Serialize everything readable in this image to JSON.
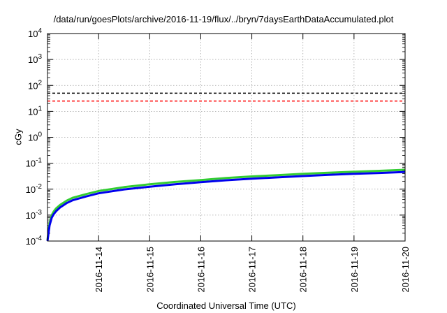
{
  "chart_data": {
    "type": "line",
    "title": "/data/run/goesPlots/archive/2016-11-19/flux/../bryn/7daysEarthDataAccumulated.plot",
    "xlabel": "Coordinated Universal Time (UTC)",
    "ylabel": "cGy",
    "y_scale": "log",
    "ylim": [
      0.0001,
      10000
    ],
    "xlim": [
      "2016-11-13T00:00",
      "2016-11-20T00:00"
    ],
    "grid": true,
    "legend": "none",
    "x_ticks": [
      "2016-11-14",
      "2016-11-15",
      "2016-11-16",
      "2016-11-17",
      "2016-11-18",
      "2016-11-19",
      "2016-11-20"
    ],
    "y_ticks": [
      {
        "value": 0.0001,
        "base": "10",
        "exp": "-4"
      },
      {
        "value": 0.001,
        "base": "10",
        "exp": "-3"
      },
      {
        "value": 0.01,
        "base": "10",
        "exp": "-2"
      },
      {
        "value": 0.1,
        "base": "10",
        "exp": "-1"
      },
      {
        "value": 1,
        "base": "10",
        "exp": "0"
      },
      {
        "value": 10,
        "base": "10",
        "exp": "1"
      },
      {
        "value": 100,
        "base": "10",
        "exp": "2"
      },
      {
        "value": 1000,
        "base": "10",
        "exp": "3"
      },
      {
        "value": 10000,
        "base": "10",
        "exp": "4"
      }
    ],
    "reference_lines": [
      {
        "y": 50,
        "color": "#000000",
        "style": "dashed"
      },
      {
        "y": 25,
        "color": "#ff0000",
        "style": "dashed"
      }
    ],
    "series": [
      {
        "color": "#33cc33",
        "x": [
          "2016-11-13T00:00",
          "2016-11-13T00:30",
          "2016-11-13T01:00",
          "2016-11-13T02:00",
          "2016-11-13T03:00",
          "2016-11-13T04:00",
          "2016-11-13T06:00",
          "2016-11-13T09:00",
          "2016-11-13T12:00",
          "2016-11-13T18:00",
          "2016-11-14T00:00",
          "2016-11-14T12:00",
          "2016-11-15T00:00",
          "2016-11-15T12:00",
          "2016-11-16T00:00",
          "2016-11-16T12:00",
          "2016-11-17T00:00",
          "2016-11-17T12:00",
          "2016-11-18T00:00",
          "2016-11-18T12:00",
          "2016-11-19T00:00",
          "2016-11-19T12:00",
          "2016-11-20T00:00"
        ],
        "y": [
          0.00011,
          0.00025,
          0.0005,
          0.001,
          0.0014,
          0.0018,
          0.0025,
          0.0036,
          0.0047,
          0.0064,
          0.0085,
          0.012,
          0.0155,
          0.019,
          0.0225,
          0.027,
          0.031,
          0.0345,
          0.039,
          0.043,
          0.047,
          0.051,
          0.056
        ]
      },
      {
        "color": "#0000ee",
        "x": [
          "2016-11-13T00:00",
          "2016-11-13T00:30",
          "2016-11-13T01:00",
          "2016-11-13T02:00",
          "2016-11-13T03:00",
          "2016-11-13T04:00",
          "2016-11-13T06:00",
          "2016-11-13T09:00",
          "2016-11-13T12:00",
          "2016-11-13T18:00",
          "2016-11-14T00:00",
          "2016-11-14T12:00",
          "2016-11-15T00:00",
          "2016-11-15T12:00",
          "2016-11-16T00:00",
          "2016-11-16T12:00",
          "2016-11-17T00:00",
          "2016-11-17T12:00",
          "2016-11-18T00:00",
          "2016-11-18T12:00",
          "2016-11-19T00:00",
          "2016-11-19T12:00",
          "2016-11-20T00:00"
        ],
        "y": [
          0.0001,
          0.0002,
          0.0004,
          0.0008,
          0.0011,
          0.0014,
          0.002,
          0.0029,
          0.0038,
          0.0052,
          0.0069,
          0.0098,
          0.0125,
          0.0155,
          0.0185,
          0.022,
          0.0255,
          0.0285,
          0.032,
          0.0355,
          0.039,
          0.042,
          0.046
        ]
      }
    ]
  }
}
